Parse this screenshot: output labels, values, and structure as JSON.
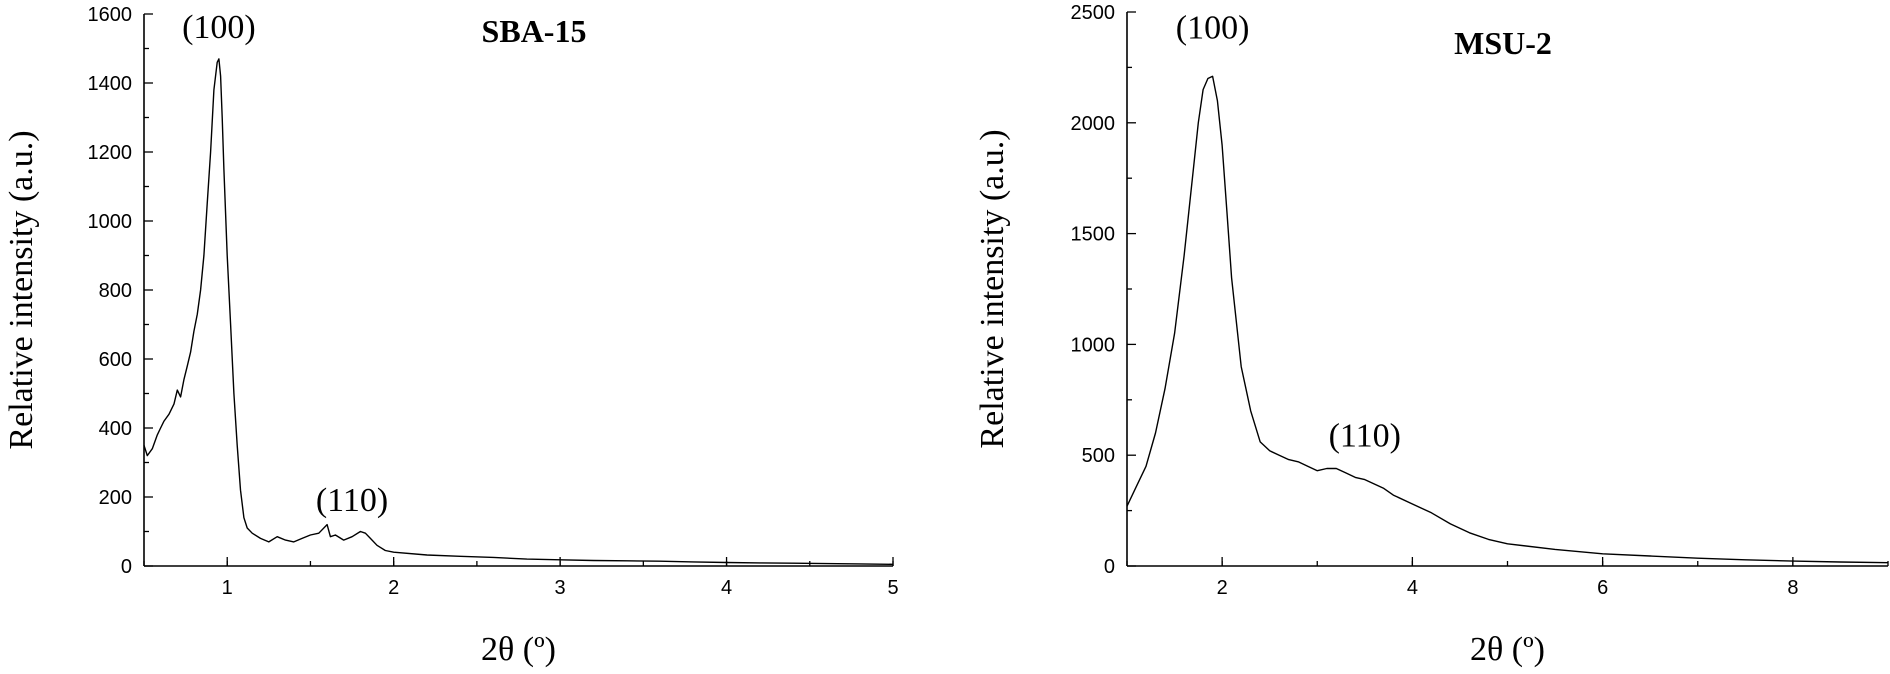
{
  "chart_data": [
    {
      "type": "line",
      "title": "SBA-15",
      "xlabel": "2θ (º)",
      "ylabel": "Relative intensity (a.u.)",
      "xlim": [
        0.5,
        5
      ],
      "ylim": [
        0,
        1600
      ],
      "xticks": [
        1,
        2,
        3,
        4,
        5
      ],
      "yticks": [
        0,
        200,
        400,
        600,
        800,
        1000,
        1200,
        1400,
        1600
      ],
      "grid": false,
      "annotations": [
        {
          "text": "(100)",
          "x": 0.95,
          "y": 1530
        },
        {
          "text": "(110)",
          "x": 1.75,
          "y": 160
        }
      ],
      "series": [
        {
          "x": [
            0.5,
            0.52,
            0.55,
            0.58,
            0.6,
            0.62,
            0.65,
            0.68,
            0.7,
            0.72,
            0.74,
            0.76,
            0.78,
            0.8,
            0.82,
            0.84,
            0.86,
            0.88,
            0.9,
            0.92,
            0.94,
            0.95,
            0.96,
            0.97,
            0.98,
            1.0,
            1.02,
            1.04,
            1.06,
            1.08,
            1.1,
            1.12,
            1.15,
            1.2,
            1.25,
            1.3,
            1.35,
            1.4,
            1.45,
            1.5,
            1.55,
            1.6,
            1.62,
            1.65,
            1.7,
            1.75,
            1.8,
            1.83,
            1.86,
            1.9,
            1.95,
            2.0,
            2.2,
            2.4,
            2.6,
            2.8,
            3.0,
            3.2,
            3.4,
            3.6,
            3.8,
            4.0,
            4.2,
            4.4,
            4.6,
            4.8,
            5.0
          ],
          "y": [
            350,
            320,
            340,
            380,
            400,
            420,
            440,
            470,
            510,
            490,
            540,
            580,
            620,
            680,
            730,
            800,
            900,
            1050,
            1200,
            1380,
            1460,
            1470,
            1420,
            1300,
            1150,
            900,
            700,
            500,
            350,
            220,
            140,
            110,
            95,
            80,
            70,
            85,
            75,
            70,
            80,
            90,
            95,
            120,
            85,
            90,
            75,
            85,
            100,
            95,
            80,
            60,
            45,
            40,
            32,
            28,
            25,
            20,
            18,
            16,
            15,
            14,
            12,
            10,
            9,
            8,
            7,
            6,
            5
          ]
        }
      ]
    },
    {
      "type": "line",
      "title": "MSU-2",
      "xlabel": "2θ (º)",
      "ylabel": "Relative intensity (a.u.)",
      "xlim": [
        1,
        9
      ],
      "ylim": [
        0,
        2500
      ],
      "xticks": [
        2,
        4,
        6,
        8
      ],
      "yticks": [
        0,
        500,
        1000,
        1500,
        2000,
        2500
      ],
      "grid": false,
      "annotations": [
        {
          "text": "(100)",
          "x": 1.9,
          "y": 2380
        },
        {
          "text": "(110)",
          "x": 3.5,
          "y": 540
        }
      ],
      "series": [
        {
          "x": [
            1.0,
            1.1,
            1.2,
            1.3,
            1.4,
            1.5,
            1.6,
            1.7,
            1.75,
            1.8,
            1.85,
            1.9,
            1.95,
            2.0,
            2.05,
            2.1,
            2.2,
            2.3,
            2.4,
            2.5,
            2.6,
            2.7,
            2.8,
            2.9,
            3.0,
            3.1,
            3.2,
            3.3,
            3.4,
            3.5,
            3.6,
            3.7,
            3.8,
            4.0,
            4.2,
            4.4,
            4.6,
            4.8,
            5.0,
            5.5,
            6.0,
            6.5,
            7.0,
            7.5,
            8.0,
            8.5,
            9.0
          ],
          "y": [
            270,
            360,
            450,
            600,
            800,
            1050,
            1400,
            1800,
            2000,
            2150,
            2200,
            2210,
            2100,
            1900,
            1600,
            1300,
            900,
            700,
            560,
            520,
            500,
            480,
            470,
            450,
            430,
            440,
            440,
            420,
            400,
            390,
            370,
            350,
            320,
            280,
            240,
            190,
            150,
            120,
            100,
            75,
            55,
            45,
            35,
            28,
            22,
            18,
            15
          ]
        }
      ]
    }
  ]
}
